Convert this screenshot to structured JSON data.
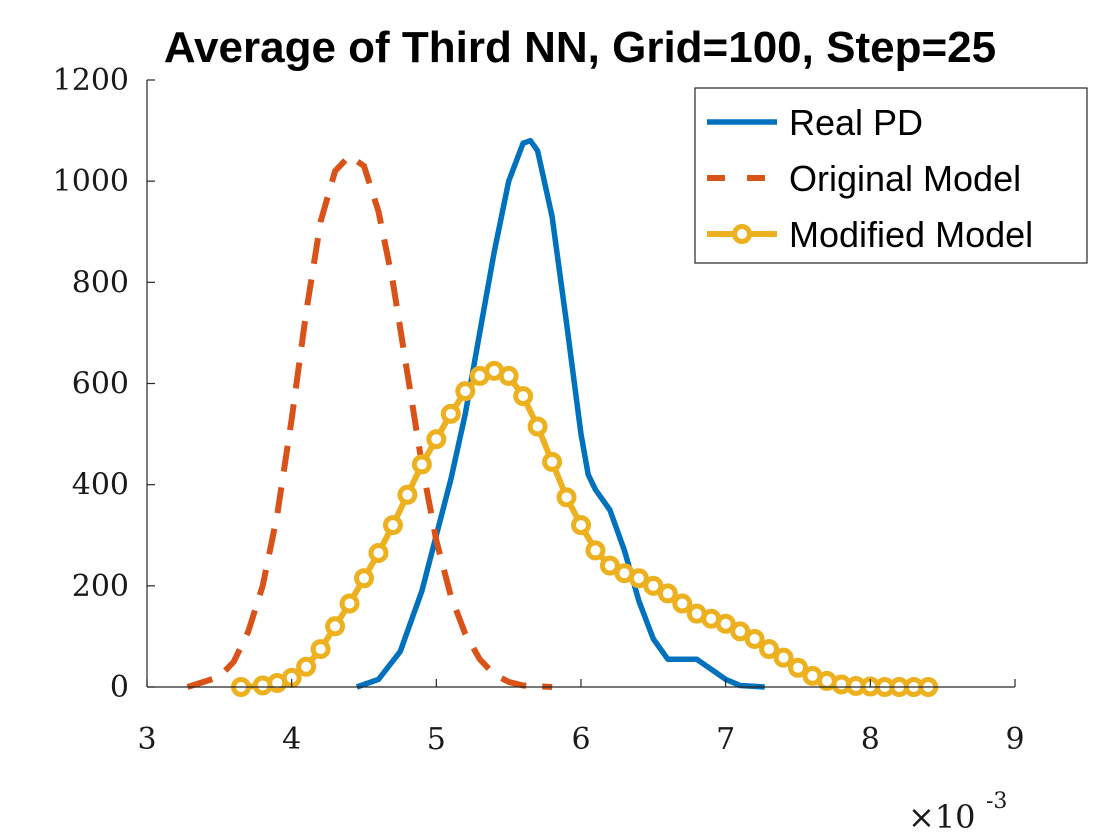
{
  "chart_data": {
    "type": "line",
    "title": "Average of Third NN, Grid=100, Step=25",
    "xlabel": "",
    "ylabel": "",
    "x_multiplier": "×10",
    "x_multiplier_exp": "-3",
    "xlim": [
      3,
      9
    ],
    "ylim": [
      0,
      1200
    ],
    "x_ticks": [
      3,
      4,
      5,
      6,
      7,
      8,
      9
    ],
    "y_ticks": [
      0,
      200,
      400,
      600,
      800,
      1000,
      1200
    ],
    "grid": false,
    "legend_position": "top-right",
    "series": [
      {
        "name": "Real PD",
        "color": "#0072bd",
        "style": "solid",
        "x": [
          4.45,
          4.6,
          4.75,
          4.9,
          5.0,
          5.1,
          5.2,
          5.3,
          5.4,
          5.5,
          5.6,
          5.65,
          5.7,
          5.8,
          5.9,
          6.0,
          6.05,
          6.1,
          6.2,
          6.3,
          6.4,
          6.5,
          6.6,
          6.7,
          6.8,
          6.9,
          7.0,
          7.1,
          7.27
        ],
        "y": [
          0,
          15,
          70,
          190,
          300,
          410,
          540,
          700,
          860,
          1000,
          1075,
          1080,
          1060,
          930,
          720,
          500,
          420,
          390,
          350,
          270,
          170,
          95,
          55,
          55,
          55,
          35,
          15,
          3,
          0
        ]
      },
      {
        "name": "Original Model",
        "color": "#d95319",
        "style": "dashed",
        "x": [
          3.28,
          3.5,
          3.6,
          3.7,
          3.8,
          3.9,
          4.0,
          4.1,
          4.2,
          4.3,
          4.4,
          4.5,
          4.6,
          4.7,
          4.8,
          4.9,
          5.0,
          5.1,
          5.2,
          5.3,
          5.4,
          5.5,
          5.6,
          5.8
        ],
        "y": [
          0,
          20,
          50,
          110,
          200,
          340,
          530,
          740,
          920,
          1020,
          1050,
          1030,
          940,
          800,
          620,
          440,
          290,
          180,
          105,
          55,
          25,
          10,
          3,
          0
        ]
      },
      {
        "name": "Modified Model",
        "color": "#edb120",
        "style": "dashed-circle",
        "x": [
          3.65,
          3.8,
          3.9,
          4.0,
          4.1,
          4.2,
          4.3,
          4.4,
          4.5,
          4.6,
          4.7,
          4.8,
          4.9,
          5.0,
          5.1,
          5.2,
          5.3,
          5.4,
          5.5,
          5.6,
          5.7,
          5.8,
          5.9,
          6.0,
          6.1,
          6.2,
          6.3,
          6.4,
          6.5,
          6.6,
          6.7,
          6.8,
          6.9,
          7.0,
          7.1,
          7.2,
          7.3,
          7.4,
          7.5,
          7.6,
          7.7,
          7.8,
          7.9,
          8.0,
          8.1,
          8.2,
          8.3,
          8.4
        ],
        "y": [
          0,
          3,
          8,
          18,
          40,
          75,
          120,
          165,
          215,
          265,
          320,
          380,
          440,
          490,
          540,
          585,
          615,
          625,
          615,
          575,
          515,
          445,
          375,
          320,
          270,
          240,
          225,
          215,
          200,
          185,
          165,
          145,
          135,
          125,
          110,
          95,
          75,
          58,
          38,
          22,
          12,
          5,
          2,
          1,
          0,
          0,
          0,
          0
        ]
      }
    ]
  }
}
